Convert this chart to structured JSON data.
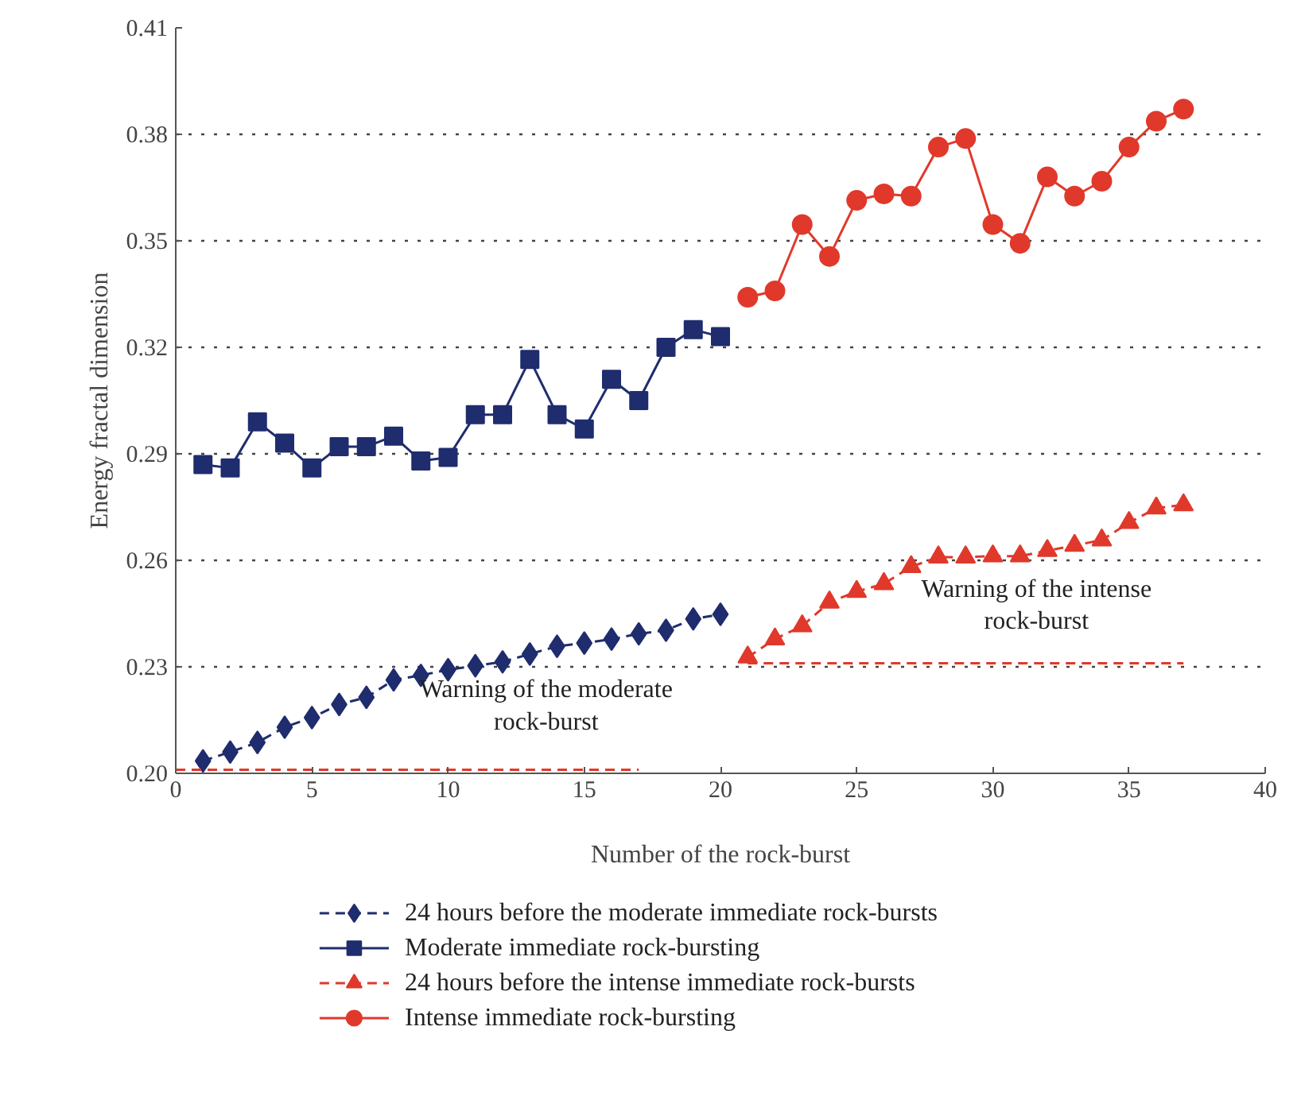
{
  "chart_data": {
    "type": "line",
    "xlabel": "Number of the rock-burst",
    "ylabel": "Energy fractal dimension",
    "xlim": [
      0,
      40
    ],
    "xticks": [
      0,
      5,
      10,
      15,
      20,
      25,
      30,
      35,
      40
    ],
    "ylim": [
      0.2,
      0.41
    ],
    "yticks": [
      {
        "value": 0.2,
        "label": "0.20"
      },
      0.23,
      0.26,
      0.29,
      0.32,
      0.35,
      0.38,
      0.41
    ],
    "grid": "y",
    "legend": "bottom",
    "series": [
      {
        "name": "24 hours before the moderate immediate rock-bursts",
        "color": "#1f2d6e",
        "marker": "diamond",
        "line_style": "dashed",
        "x": [
          1,
          2,
          3,
          4,
          5,
          6,
          7,
          8,
          9,
          10,
          11,
          12,
          13,
          14,
          15,
          16,
          17,
          18,
          19,
          20
        ],
        "values": [
          0.2035,
          0.206,
          0.2087,
          0.213,
          0.2157,
          0.2194,
          0.2214,
          0.2263,
          0.2276,
          0.2292,
          0.2303,
          0.2314,
          0.2336,
          0.2358,
          0.2367,
          0.2378,
          0.2393,
          0.2403,
          0.2435,
          0.2448
        ]
      },
      {
        "name": "Moderate immediate rock-bursting",
        "color": "#1f2d6e",
        "marker": "square",
        "line_style": "solid",
        "x": [
          1,
          2,
          3,
          4,
          5,
          6,
          7,
          8,
          9,
          10,
          11,
          12,
          13,
          14,
          15,
          16,
          17,
          18,
          19,
          20
        ],
        "values": [
          0.287,
          0.286,
          0.299,
          0.293,
          0.286,
          0.292,
          0.292,
          0.295,
          0.288,
          0.289,
          0.301,
          0.301,
          0.3166,
          0.301,
          0.297,
          0.311,
          0.305,
          0.32,
          0.325,
          0.323
        ]
      },
      {
        "name": "24 hours before the intense immediate rock-bursts",
        "color": "#e0392b",
        "marker": "triangle",
        "line_style": "dashed",
        "x": [
          21,
          22,
          23,
          24,
          25,
          26,
          27,
          28,
          29,
          30,
          31,
          32,
          33,
          34,
          35,
          36,
          37
        ],
        "values": [
          0.2327,
          0.2378,
          0.2415,
          0.2482,
          0.2512,
          0.2534,
          0.2582,
          0.2609,
          0.2609,
          0.2612,
          0.2612,
          0.2627,
          0.2642,
          0.2657,
          0.2706,
          0.2747,
          0.2756
        ]
      },
      {
        "name": "Intense immediate rock-bursting",
        "color": "#e0392b",
        "marker": "circle",
        "line_style": "solid",
        "x": [
          21,
          22,
          23,
          24,
          25,
          26,
          27,
          28,
          29,
          30,
          31,
          32,
          33,
          34,
          35,
          36,
          37
        ],
        "values": [
          0.3341,
          0.3359,
          0.3546,
          0.3456,
          0.3614,
          0.3632,
          0.3626,
          0.3764,
          0.3788,
          0.3546,
          0.3493,
          0.368,
          0.3626,
          0.3668,
          0.3764,
          0.3837,
          0.3871
        ]
      },
      {
        "color": "#e0392b",
        "marker": "none",
        "line_style": "dashed",
        "x": [
          0,
          17
        ],
        "values": [
          0.201,
          0.201
        ]
      },
      {
        "color": "#e0392b",
        "marker": "none",
        "line_style": "dashed",
        "x": [
          21,
          37
        ],
        "values": [
          0.231,
          0.231
        ]
      }
    ],
    "annotations": [
      "Warning of the moderate\nrock-burst",
      "Warning of the intense\nrock-burst"
    ]
  }
}
